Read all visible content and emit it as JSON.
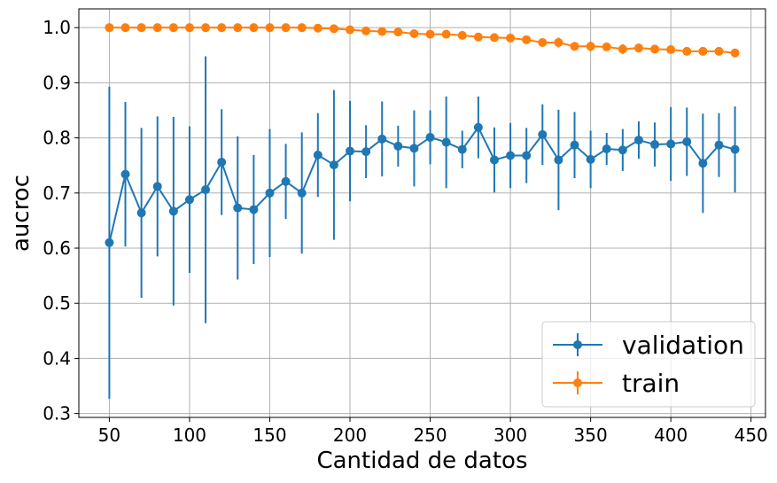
{
  "chart_data": {
    "type": "line",
    "title": "",
    "xlabel": "Cantidad de datos",
    "ylabel": "aucroc",
    "xlim": [
      31,
      459
    ],
    "ylim": [
      0.293,
      1.034
    ],
    "xticks": [
      50,
      100,
      150,
      200,
      250,
      300,
      350,
      400,
      450
    ],
    "xtick_labels": [
      "50",
      "100",
      "150",
      "200",
      "250",
      "300",
      "350",
      "400",
      "450"
    ],
    "yticks": [
      0.3,
      0.4,
      0.5,
      0.6,
      0.7,
      0.8,
      0.9,
      1.0
    ],
    "ytick_labels": [
      "0.3",
      "0.4",
      "0.5",
      "0.6",
      "0.7",
      "0.8",
      "0.9",
      "1.0"
    ],
    "grid": true,
    "legend_position": "bottom-right",
    "x": [
      50,
      60,
      70,
      80,
      90,
      100,
      110,
      120,
      130,
      140,
      150,
      160,
      170,
      180,
      190,
      200,
      210,
      220,
      230,
      240,
      250,
      260,
      270,
      280,
      290,
      300,
      310,
      320,
      330,
      340,
      350,
      360,
      370,
      380,
      390,
      400,
      410,
      420,
      430,
      440
    ],
    "series": [
      {
        "name": "validation",
        "color": "#1f77b4",
        "values": [
          0.61,
          0.734,
          0.664,
          0.712,
          0.667,
          0.688,
          0.706,
          0.756,
          0.673,
          0.67,
          0.7,
          0.721,
          0.7,
          0.769,
          0.751,
          0.776,
          0.775,
          0.798,
          0.785,
          0.781,
          0.801,
          0.792,
          0.779,
          0.819,
          0.76,
          0.768,
          0.768,
          0.806,
          0.76,
          0.787,
          0.761,
          0.78,
          0.778,
          0.796,
          0.788,
          0.789,
          0.793,
          0.754,
          0.787,
          0.779
        ],
        "errors": [
          0.283,
          0.131,
          0.154,
          0.127,
          0.171,
          0.133,
          0.242,
          0.096,
          0.13,
          0.099,
          0.116,
          0.068,
          0.11,
          0.076,
          0.136,
          0.091,
          0.048,
          0.068,
          0.037,
          0.069,
          0.049,
          0.083,
          0.034,
          0.056,
          0.059,
          0.059,
          0.05,
          0.055,
          0.091,
          0.06,
          0.052,
          0.029,
          0.038,
          0.034,
          0.04,
          0.067,
          0.062,
          0.09,
          0.058,
          0.078
        ]
      },
      {
        "name": "train",
        "color": "#ff7f0e",
        "values": [
          1.0,
          1.0,
          1.0,
          1.0,
          1.0,
          1.0,
          1.0,
          1.0,
          1.0,
          1.0,
          1.0,
          1.0,
          1.0,
          0.999,
          0.998,
          0.996,
          0.994,
          0.993,
          0.992,
          0.989,
          0.988,
          0.988,
          0.986,
          0.983,
          0.982,
          0.981,
          0.978,
          0.973,
          0.973,
          0.966,
          0.966,
          0.965,
          0.961,
          0.963,
          0.961,
          0.96,
          0.957,
          0.957,
          0.957,
          0.954
        ],
        "errors": [
          0,
          0,
          0,
          0,
          0,
          0,
          0,
          0,
          0,
          0,
          0,
          0,
          0,
          0,
          0,
          0,
          0,
          0,
          0,
          0,
          0,
          0,
          0,
          0,
          0,
          0,
          0,
          0,
          0.009,
          0,
          0.009,
          0,
          0.009,
          0,
          0,
          0,
          0,
          0,
          0,
          0
        ]
      }
    ]
  }
}
